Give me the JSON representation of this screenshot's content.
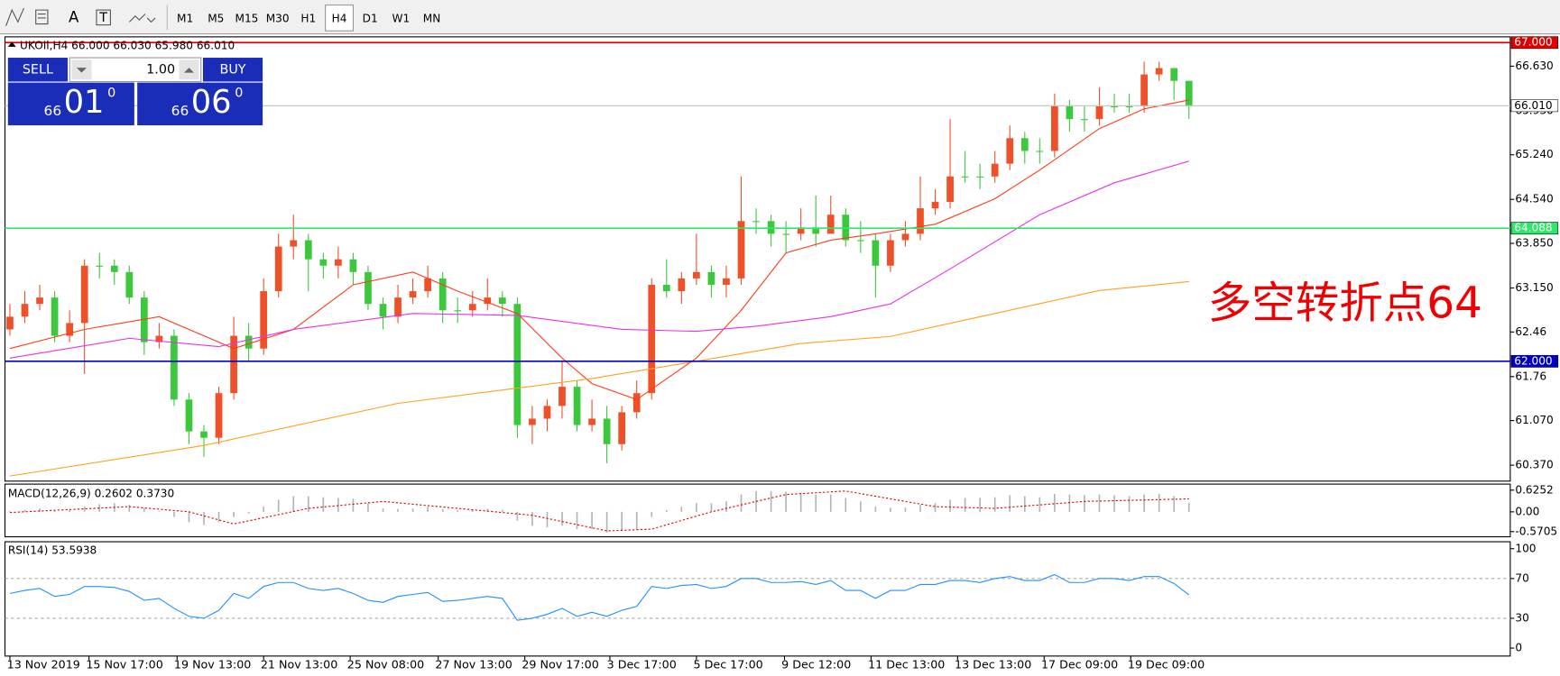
{
  "toolbar": {
    "text_tools": [
      "A",
      "T"
    ],
    "timeframes": [
      "M1",
      "M5",
      "M15",
      "M30",
      "H1",
      "H4",
      "D1",
      "W1",
      "MN"
    ],
    "active": "H4"
  },
  "trade_panel": {
    "sell": "SELL",
    "buy": "BUY",
    "lot": "1.00",
    "sell_price": {
      "prefix": "66",
      "main": "01",
      "sup": "0"
    },
    "buy_price": {
      "prefix": "66",
      "main": "06",
      "sup": "0"
    }
  },
  "chart_data": [
    {
      "type": "candlestick",
      "title": "UKOIl,H4  66.000 66.030 65.980 66.010",
      "up_color": "#f05028",
      "down_color": "#3cc83c",
      "open": [
        62.5,
        62.7,
        62.9,
        63.0,
        62.4,
        62.6,
        63.5,
        63.5,
        63.4,
        63.0,
        62.3,
        62.4,
        61.4,
        60.9,
        60.8,
        61.5,
        62.4,
        62.2,
        63.1,
        63.8,
        63.9,
        63.6,
        63.5,
        63.6,
        63.4,
        62.9,
        62.7,
        63.0,
        63.1,
        63.3,
        62.8,
        62.8,
        62.9,
        63.0,
        62.9,
        61.0,
        61.1,
        61.3,
        61.6,
        61.0,
        61.1,
        60.7,
        61.2,
        61.5,
        63.2,
        63.1,
        63.3,
        63.4,
        63.2,
        63.3,
        64.2,
        64.2,
        64.0,
        64.0,
        64.1,
        64.0,
        64.3,
        63.9,
        63.9,
        63.5,
        63.9,
        64.0,
        64.4,
        64.5,
        64.9,
        64.9,
        64.9,
        65.1,
        65.5,
        65.3,
        65.3,
        66.0,
        65.8,
        65.8,
        66.0,
        66.0,
        66.0,
        66.5,
        66.6,
        66.4
      ],
      "high": [
        62.9,
        63.1,
        63.2,
        63.1,
        62.8,
        63.6,
        63.7,
        63.6,
        63.5,
        63.1,
        62.6,
        62.5,
        61.5,
        61.0,
        61.6,
        62.7,
        62.6,
        63.3,
        64.0,
        64.3,
        64.0,
        63.7,
        63.8,
        63.7,
        63.5,
        63.0,
        63.2,
        63.3,
        63.5,
        63.4,
        63.0,
        63.1,
        63.3,
        63.1,
        63.0,
        61.3,
        61.4,
        62.0,
        61.7,
        61.4,
        61.3,
        61.3,
        61.7,
        63.3,
        63.6,
        63.4,
        64.0,
        63.5,
        63.5,
        64.9,
        64.4,
        64.3,
        64.2,
        64.4,
        64.6,
        64.6,
        64.4,
        64.2,
        64.0,
        64.0,
        64.2,
        64.9,
        64.7,
        65.8,
        65.3,
        65.1,
        65.3,
        65.7,
        65.6,
        65.5,
        66.2,
        66.1,
        66.0,
        66.3,
        66.2,
        66.2,
        66.7,
        66.7,
        66.6,
        66.4
      ],
      "low": [
        62.4,
        62.6,
        62.8,
        62.3,
        62.3,
        61.8,
        63.3,
        63.2,
        62.9,
        62.1,
        62.2,
        61.3,
        60.7,
        60.5,
        60.7,
        61.4,
        62.0,
        62.1,
        63.0,
        63.6,
        63.1,
        63.3,
        63.3,
        63.2,
        62.8,
        62.5,
        62.6,
        62.9,
        63.0,
        62.6,
        62.6,
        62.7,
        62.8,
        62.7,
        60.8,
        60.7,
        60.9,
        61.1,
        60.9,
        60.9,
        60.4,
        60.6,
        61.1,
        61.4,
        63.0,
        62.9,
        63.2,
        63.0,
        63.0,
        63.2,
        64.0,
        63.8,
        63.7,
        63.9,
        63.8,
        64.0,
        63.8,
        63.7,
        63.0,
        63.4,
        63.8,
        63.9,
        64.3,
        64.4,
        64.8,
        64.7,
        64.8,
        65.0,
        65.1,
        65.1,
        65.2,
        65.6,
        65.6,
        65.7,
        65.9,
        65.9,
        65.9,
        66.4,
        66.1,
        65.8
      ],
      "close": [
        62.7,
        62.9,
        63.0,
        62.4,
        62.6,
        63.5,
        63.5,
        63.4,
        63.0,
        62.3,
        62.4,
        61.4,
        60.9,
        60.8,
        61.5,
        62.4,
        62.2,
        63.1,
        63.8,
        63.9,
        63.6,
        63.5,
        63.6,
        63.4,
        62.9,
        62.7,
        63.0,
        63.1,
        63.3,
        62.8,
        62.8,
        62.9,
        63.0,
        62.9,
        61.0,
        61.1,
        61.3,
        61.6,
        61.0,
        61.1,
        60.7,
        61.2,
        61.5,
        63.2,
        63.1,
        63.3,
        63.4,
        63.2,
        63.3,
        64.2,
        64.2,
        64.0,
        64.0,
        64.1,
        64.0,
        64.3,
        63.9,
        63.9,
        63.5,
        63.9,
        64.0,
        64.4,
        64.5,
        64.9,
        64.9,
        64.9,
        65.1,
        65.5,
        65.3,
        65.3,
        66.0,
        65.8,
        65.8,
        66.0,
        66.0,
        66.0,
        66.5,
        66.6,
        66.4,
        66.01
      ],
      "series": [
        {
          "color": "#ff3b1a",
          "x": [
            0,
            5,
            10,
            15,
            19,
            23,
            27,
            30,
            34,
            37,
            39,
            42,
            46,
            49,
            52,
            55,
            58,
            62,
            66,
            69,
            73,
            76,
            79
          ],
          "values": [
            62.2,
            62.5,
            62.7,
            62.2,
            62.5,
            63.2,
            63.4,
            63.1,
            62.75,
            62.05,
            61.65,
            61.4,
            62.05,
            62.8,
            63.7,
            63.9,
            64.0,
            64.15,
            64.55,
            65.0,
            65.65,
            65.96,
            66.1
          ]
        },
        {
          "color": "#e632e6",
          "x": [
            0,
            8,
            14,
            19,
            27,
            34,
            41,
            46,
            50,
            55,
            59,
            63,
            69,
            74,
            79
          ],
          "values": [
            62.05,
            62.36,
            62.23,
            62.5,
            62.75,
            62.72,
            62.5,
            62.47,
            62.55,
            62.7,
            62.9,
            63.45,
            64.3,
            64.8,
            65.14
          ]
        },
        {
          "color": "#ffa01e",
          "x": [
            0,
            13,
            26,
            39,
            46,
            53,
            59,
            66,
            73,
            79
          ],
          "values": [
            60.2,
            60.68,
            61.34,
            61.73,
            62.0,
            62.28,
            62.39,
            62.75,
            63.11,
            63.25
          ]
        }
      ],
      "hlines": [
        {
          "value": 66.01,
          "label": "66.010",
          "color": "#c0c0c0",
          "label_bg": "#ffffff",
          "label_color": "#000000"
        },
        {
          "value": 67.0,
          "label": "67.000",
          "color": "#e00000",
          "label_bg": "#e00000",
          "label_color": "#ffffff"
        },
        {
          "value": 64.088,
          "label": "64.088",
          "color": "#2ee86a",
          "label_bg": "#2ee86a",
          "label_color": "#ffffff"
        },
        {
          "value": 62.0,
          "label": "62.000",
          "color": "#0000c8",
          "label_bg": "#0000c8",
          "label_color": "#ffffff"
        }
      ],
      "annotation": "多空转折点64",
      "ylim": [
        60.12,
        67.09
      ],
      "yticks": [
        {
          "value": 60.37,
          "label": "60.370"
        },
        {
          "value": 61.07,
          "label": "61.070"
        },
        61.76,
        62.46,
        {
          "value": 63.15,
          "label": "63.150"
        },
        {
          "value": 63.85,
          "label": "63.850"
        },
        {
          "value": 64.54,
          "label": "64.540"
        },
        {
          "value": 65.24,
          "label": "65.240"
        },
        {
          "value": 65.93,
          "label": "65.930"
        },
        {
          "value": 66.63,
          "label": "66.630"
        }
      ],
      "xlim": [
        -0.33,
        100.53
      ],
      "xticks": [
        {
          "value": 0,
          "label": "13 Nov 2019"
        },
        {
          "value": 5.3,
          "label": "15 Nov 17:00"
        },
        {
          "value": 11.2,
          "label": "19 Nov 13:00"
        },
        {
          "value": 17,
          "label": "21 Nov 13:00"
        },
        {
          "value": 22.8,
          "label": "25 Nov 08:00"
        },
        {
          "value": 28.7,
          "label": "27 Nov 13:00"
        },
        {
          "value": 34.5,
          "label": "29 Nov 17:00"
        },
        {
          "value": 40.2,
          "label": "3 Dec 17:00"
        },
        {
          "value": 46,
          "label": "5 Dec 17:00"
        },
        {
          "value": 51.9,
          "label": "9 Dec 12:00"
        },
        {
          "value": 57.7,
          "label": "11 Dec 13:00"
        },
        {
          "value": 63.5,
          "label": "13 Dec 13:00"
        },
        {
          "value": 69.3,
          "label": "17 Dec 09:00"
        },
        {
          "value": 75.1,
          "label": "19 Dec 09:00"
        }
      ]
    },
    {
      "type": "macd",
      "title": "MACD(12,26,9) 0.2602 0.3730",
      "color": "#b4b4b4",
      "values": [
        0.02,
        0.06,
        0.1,
        0.05,
        0.06,
        0.15,
        0.22,
        0.25,
        0.2,
        0.1,
        0.02,
        -0.15,
        -0.3,
        -0.38,
        -0.3,
        -0.15,
        -0.05,
        0.15,
        0.35,
        0.45,
        0.45,
        0.42,
        0.4,
        0.38,
        0.25,
        0.1,
        0.08,
        0.1,
        0.15,
        0.08,
        0.05,
        0.05,
        0.08,
        0.06,
        -0.25,
        -0.4,
        -0.45,
        -0.4,
        -0.5,
        -0.5,
        -0.6,
        -0.55,
        -0.5,
        -0.15,
        0.05,
        0.15,
        0.25,
        0.25,
        0.3,
        0.5,
        0.6,
        0.6,
        0.58,
        0.55,
        0.5,
        0.5,
        0.4,
        0.3,
        0.15,
        0.12,
        0.12,
        0.2,
        0.25,
        0.35,
        0.4,
        0.4,
        0.42,
        0.48,
        0.45,
        0.42,
        0.52,
        0.5,
        0.48,
        0.5,
        0.48,
        0.45,
        0.5,
        0.52,
        0.45,
        0.2602
      ],
      "signal": {
        "color": "#e00000",
        "x": [
          0,
          8,
          12,
          15,
          20,
          25,
          30,
          35,
          40,
          43,
          47,
          52,
          56,
          62,
          66,
          72,
          79
        ],
        "values": [
          -0.02,
          0.15,
          0.0,
          -0.35,
          0.1,
          0.3,
          0.1,
          -0.1,
          -0.55,
          -0.5,
          0.0,
          0.5,
          0.6,
          0.15,
          0.1,
          0.3,
          0.373
        ]
      },
      "ylim": [
        -0.72,
        0.8
      ],
      "yticks": [
        0.6252,
        {
          "value": 0,
          "label": "0.00"
        },
        -0.5705
      ]
    },
    {
      "type": "rsi",
      "title": "RSI(14) 53.5938",
      "color": "#1e90ff",
      "values": [
        55,
        58,
        60,
        52,
        54,
        62,
        62,
        61,
        57,
        48,
        50,
        40,
        32,
        30,
        38,
        55,
        50,
        62,
        66,
        66,
        60,
        58,
        60,
        55,
        48,
        46,
        52,
        54,
        56,
        47,
        48,
        50,
        52,
        50,
        28,
        30,
        34,
        40,
        32,
        36,
        32,
        38,
        42,
        62,
        60,
        63,
        64,
        60,
        62,
        70,
        70,
        66,
        66,
        67,
        64,
        68,
        58,
        58,
        50,
        58,
        58,
        64,
        64,
        68,
        68,
        66,
        70,
        72,
        68,
        68,
        74,
        66,
        66,
        70,
        70,
        68,
        72,
        72,
        65,
        53.5938
      ],
      "levels": [
        70,
        30
      ],
      "ylim": [
        -8,
        107
      ],
      "yticks": [
        100,
        70,
        30,
        0
      ]
    }
  ]
}
